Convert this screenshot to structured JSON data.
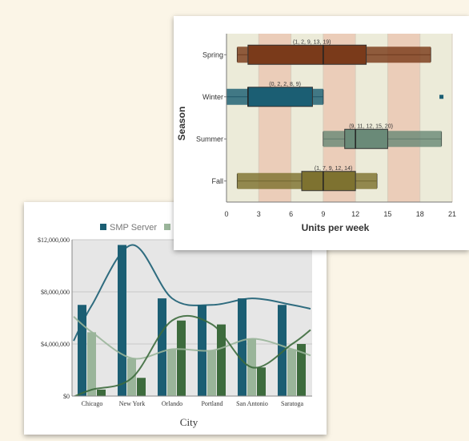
{
  "chart_data": [
    {
      "type": "bar",
      "categories": [
        "Chicago",
        "New York",
        "Orlando",
        "Portland",
        "San Antonio",
        "Saratoga"
      ],
      "series": [
        {
          "name": "SMP Server",
          "color": "#1b5e73",
          "values": [
            7000000,
            11600000,
            7500000,
            7000000,
            7500000,
            7000000
          ]
        },
        {
          "name": "",
          "color": "#9ab59a",
          "values": [
            4900000,
            2900000,
            3600000,
            3500000,
            4400000,
            3600000
          ]
        },
        {
          "name": "",
          "color": "#3d6b3d",
          "values": [
            500000,
            1400000,
            5800000,
            5500000,
            2200000,
            4000000
          ]
        }
      ],
      "xlabel": "City",
      "ylabel": "",
      "ylim": [
        0,
        12000000
      ],
      "yticks": [
        "$0",
        "$4,000,000",
        "$8,000,000",
        "$12,000,000"
      ],
      "legend": "top",
      "grid": true,
      "trend_lines": true
    },
    {
      "type": "box",
      "categories": [
        "Spring",
        "Winter",
        "Summer",
        "Fall"
      ],
      "boxes": [
        {
          "category": "Spring",
          "min": 1,
          "q1": 2,
          "median": 9,
          "q3": 13,
          "max": 19,
          "label": "(1, 2, 9, 13, 19)",
          "color": "#7a3a1a"
        },
        {
          "category": "Winter",
          "min": 0,
          "q1": 2,
          "median": 2,
          "q3": 8,
          "max": 9,
          "label": "(0, 2, 2, 8, 9)",
          "color": "#1b5e73"
        },
        {
          "category": "Summer",
          "min": 9,
          "q1": 11,
          "median": 12,
          "q3": 15,
          "max": 20,
          "label": "(9, 11, 12, 15, 20)",
          "color": "#6a8a78"
        },
        {
          "category": "Fall",
          "min": 1,
          "q1": 7,
          "median": 9,
          "q3": 12,
          "max": 14,
          "label": "(1, 7, 9, 12, 14)",
          "color": "#7e7230"
        }
      ],
      "outliers": [
        {
          "category": "Winter",
          "value": 20
        }
      ],
      "xlabel": "Units per week",
      "ylabel": "Season",
      "xlim": [
        0,
        21
      ],
      "xticks": [
        0,
        3,
        6,
        9,
        12,
        15,
        18,
        21
      ],
      "bands": [
        "#ecebd9",
        "#ebcdb9"
      ]
    }
  ]
}
